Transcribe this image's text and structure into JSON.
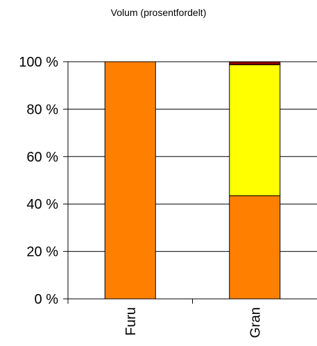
{
  "chart_data": {
    "type": "bar",
    "stacked": true,
    "title": "Volum (prosentfordelt)",
    "categories": [
      "Furu",
      "Gran"
    ],
    "series": [
      {
        "values": [
          100,
          43.5
        ],
        "color": "#ff8000"
      },
      {
        "values": [
          0,
          55.2
        ],
        "color": "#ffff00"
      },
      {
        "values": [
          0,
          1.3
        ],
        "color": "#8b0000"
      }
    ],
    "ylim": [
      0,
      100
    ],
    "yticks": [
      0,
      20,
      40,
      60,
      80,
      100
    ],
    "ytick_labels": [
      "0 %",
      "20 %",
      "40 %",
      "60 %",
      "80 %",
      "100 %"
    ],
    "grid": true
  }
}
